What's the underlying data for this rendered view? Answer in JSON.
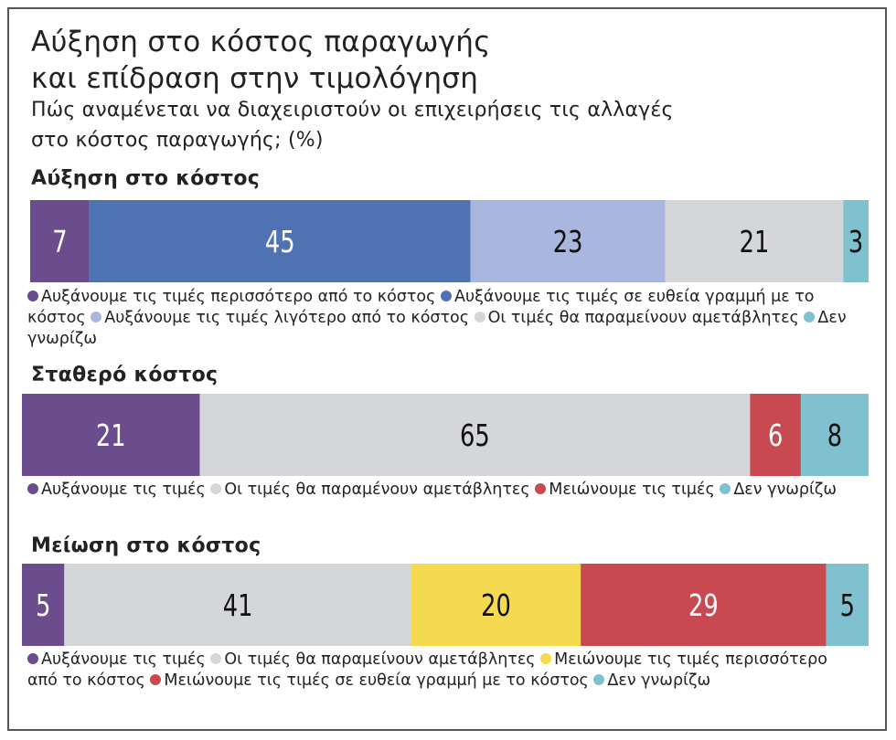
{
  "title_line1": "Αύξηση στο κόστος παραγωγής",
  "title_line2": "και επίδραση στην τιμολόγηση",
  "subtitle_line1": "Πώς αναμένεται να διαχειριστούν οι επιχειρήσεις τις αλλαγές",
  "subtitle_line2": "στο κόστος παραγωγής; (%)",
  "colors": {
    "purple": "#6b4d8e",
    "blue": "#4f72b3",
    "lavender": "#a9b6de",
    "grey": "#d4d6d9",
    "teal": "#7fc1cf",
    "red": "#c8494f",
    "yellow": "#f5d94f"
  },
  "chart_data": [
    {
      "type": "bar",
      "stacked": true,
      "orientation": "horizontal",
      "title": "Αύξηση στο κόστος",
      "series": [
        {
          "name": "Αυξάνουμε τις τιμές περισσότερο από το κόστος",
          "value": 7,
          "color": "purple",
          "text_color": "#ffffff"
        },
        {
          "name": "Αυξάνουμε τις τιμές σε ευθεία γραμμή με το κόστος",
          "value": 45,
          "color": "blue",
          "text_color": "#ffffff"
        },
        {
          "name": "Αυξάνουμε τις τιμές λιγότερο από το κόστος",
          "value": 23,
          "color": "lavender",
          "text_color": "#111111"
        },
        {
          "name": "Οι τιμές θα παραμείνουν αμετάβλητες",
          "value": 21,
          "color": "grey",
          "text_color": "#111111"
        },
        {
          "name": "Δεν γνωρίζω",
          "value": 3,
          "color": "teal",
          "text_color": "#111111"
        }
      ]
    },
    {
      "type": "bar",
      "stacked": true,
      "orientation": "horizontal",
      "title": "Σταθερό κόστος",
      "series": [
        {
          "name": "Αυξάνουμε τις τιμές",
          "value": 21,
          "color": "purple",
          "text_color": "#ffffff"
        },
        {
          "name": "Οι τιμές θα παραμένουν αμετάβλητες",
          "value": 65,
          "color": "grey",
          "text_color": "#111111"
        },
        {
          "name": "Μειώνουμε τις τιμές",
          "value": 6,
          "color": "red",
          "text_color": "#ffffff"
        },
        {
          "name": "Δεν γνωρίζω",
          "value": 8,
          "color": "teal",
          "text_color": "#111111"
        }
      ]
    },
    {
      "type": "bar",
      "stacked": true,
      "orientation": "horizontal",
      "title": "Μείωση στο κόστος",
      "series": [
        {
          "name": "Αυξάνουμε τις τιμές",
          "value": 5,
          "color": "purple",
          "text_color": "#ffffff"
        },
        {
          "name": "Οι τιμές θα παραμείνουν αμετάβλητες",
          "value": 41,
          "color": "grey",
          "text_color": "#111111"
        },
        {
          "name": "Μειώνουμε τις τιμές περισσότερο από το κόστος",
          "value": 20,
          "color": "yellow",
          "text_color": "#111111"
        },
        {
          "name": "Μειώνουμε τις τιμές σε ευθεία γραμμή με το κόστος",
          "value": 29,
          "color": "red",
          "text_color": "#ffffff"
        },
        {
          "name": "Δεν γνωρίζω",
          "value": 5,
          "color": "teal",
          "text_color": "#111111"
        }
      ]
    }
  ]
}
